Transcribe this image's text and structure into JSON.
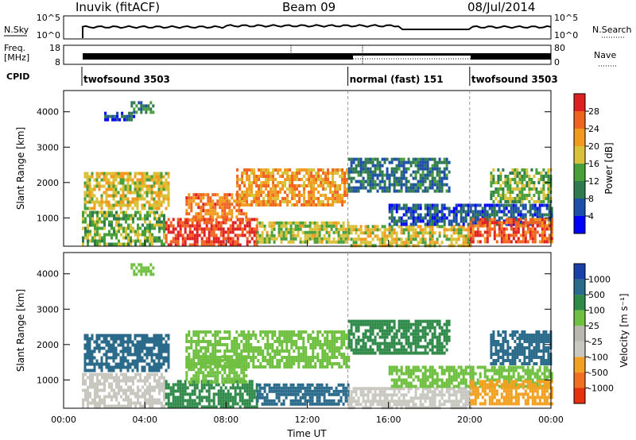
{
  "header": {
    "site": "Inuvik (fitACF)",
    "beam": "Beam 09",
    "date": "08/Jul/2014"
  },
  "top_panels": {
    "nsky_label": "N.Sky",
    "nsky_ticks": [
      "10^5",
      "10^0"
    ],
    "nsearch_label": "N.Search",
    "nsearch_ticks": [
      "10^5",
      "10^0"
    ],
    "freq_label": "Freq.",
    "freq_unit": "[MHz]",
    "freq_ticks": [
      "18",
      "8"
    ],
    "nave_label": "Nave",
    "nave_ticks": [
      "80",
      "0"
    ],
    "cpid_label": "CPID",
    "cpid_segments": [
      {
        "label": "twofsound 3503",
        "start_hour": 0.9,
        "end_hour": 14.0
      },
      {
        "label": "normal (fast) 151",
        "start_hour": 14.0,
        "end_hour": 20.0
      },
      {
        "label": "twofsound 3503",
        "start_hour": 20.0,
        "end_hour": 24.0
      }
    ]
  },
  "colors": {
    "power_scale": [
      "#0000ff",
      "#1d4fa8",
      "#2f7a4f",
      "#49a03a",
      "#d9c23a",
      "#f29a1e",
      "#f06420",
      "#e02020"
    ],
    "velocity_scale": [
      "#1a3fa8",
      "#2a6a8a",
      "#2f8a4a",
      "#6fc040",
      "#b8b8b0",
      "#c8c8c0",
      "#f2a020",
      "#f07020",
      "#e83010"
    ]
  },
  "chart_data": [
    {
      "type": "heatmap",
      "name": "power",
      "xlabel": "",
      "ylabel": "Slant Range [km]",
      "xlim": [
        0,
        24
      ],
      "ylim": [
        200,
        4600
      ],
      "yticks": [
        1000,
        2000,
        3000,
        4000
      ],
      "colorbar_label": "Power [dB]",
      "colorbar_ticks": [
        "4",
        "8",
        "12",
        "16",
        "20",
        "24",
        "28"
      ],
      "colorbar_range": [
        0,
        32
      ],
      "regions": [
        {
          "x": [
            0.9,
            5.0
          ],
          "y": [
            300,
            1200
          ],
          "value": 14
        },
        {
          "x": [
            1.0,
            5.2
          ],
          "y": [
            1300,
            2300
          ],
          "value": 18
        },
        {
          "x": [
            3.3,
            4.5
          ],
          "y": [
            4000,
            4300
          ],
          "value": 10
        },
        {
          "x": [
            2.0,
            3.5
          ],
          "y": [
            3800,
            4000
          ],
          "value": 6
        },
        {
          "x": [
            5.0,
            9.5
          ],
          "y": [
            250,
            1000
          ],
          "value": 28
        },
        {
          "x": [
            6.0,
            9.0
          ],
          "y": [
            900,
            1700
          ],
          "value": 24
        },
        {
          "x": [
            8.5,
            14.0
          ],
          "y": [
            1400,
            2400
          ],
          "value": 22
        },
        {
          "x": [
            9.5,
            14.0
          ],
          "y": [
            300,
            900
          ],
          "value": 16
        },
        {
          "x": [
            14.0,
            19.0
          ],
          "y": [
            1800,
            2700
          ],
          "value": 8
        },
        {
          "x": [
            14.0,
            20.0
          ],
          "y": [
            250,
            800
          ],
          "value": 18
        },
        {
          "x": [
            16.0,
            24.0
          ],
          "y": [
            800,
            1400
          ],
          "value": 6
        },
        {
          "x": [
            20.0,
            24.0
          ],
          "y": [
            300,
            1000
          ],
          "value": 26
        },
        {
          "x": [
            21.0,
            24.0
          ],
          "y": [
            1500,
            2400
          ],
          "value": 14
        }
      ]
    },
    {
      "type": "heatmap",
      "name": "velocity",
      "xlabel": "Time UT",
      "ylabel": "Slant Range [km]",
      "xlim": [
        0,
        24
      ],
      "ylim": [
        200,
        4600
      ],
      "xticks": [
        "00:00",
        "04:00",
        "08:00",
        "12:00",
        "16:00",
        "20:00",
        "00:00"
      ],
      "yticks": [
        1000,
        2000,
        3000,
        4000
      ],
      "colorbar_label": "Velocity [m s⁻¹]",
      "colorbar_ticks": [
        "1000",
        "500",
        "100",
        "25",
        "-25",
        "-100",
        "-500",
        "-1000"
      ],
      "regions": [
        {
          "x": [
            0.9,
            5.0
          ],
          "y": [
            300,
            1200
          ],
          "value": -300
        },
        {
          "x": [
            1.0,
            5.2
          ],
          "y": [
            1300,
            2300
          ],
          "value": 150
        },
        {
          "x": [
            3.3,
            4.5
          ],
          "y": [
            4000,
            4300
          ],
          "value": 0
        },
        {
          "x": [
            5.0,
            9.5
          ],
          "y": [
            250,
            1000
          ],
          "value": 80
        },
        {
          "x": [
            6.0,
            9.0
          ],
          "y": [
            900,
            1700
          ],
          "value": 20
        },
        {
          "x": [
            6.0,
            14.0
          ],
          "y": [
            1400,
            2400
          ],
          "value": 0
        },
        {
          "x": [
            9.5,
            14.0
          ],
          "y": [
            300,
            900
          ],
          "value": 150
        },
        {
          "x": [
            14.0,
            19.0
          ],
          "y": [
            1800,
            2700
          ],
          "value": 60
        },
        {
          "x": [
            14.0,
            20.0
          ],
          "y": [
            250,
            800
          ],
          "value": -400
        },
        {
          "x": [
            16.0,
            24.0
          ],
          "y": [
            800,
            1400
          ],
          "value": 0
        },
        {
          "x": [
            20.0,
            24.0
          ],
          "y": [
            300,
            1000
          ],
          "value": -600
        },
        {
          "x": [
            21.0,
            24.0
          ],
          "y": [
            1500,
            2400
          ],
          "value": 200
        }
      ]
    }
  ]
}
